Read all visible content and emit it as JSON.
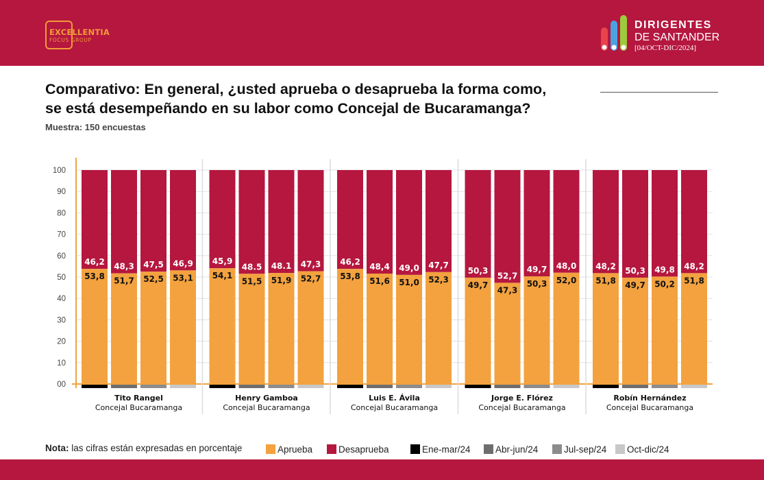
{
  "header": {
    "left_logo": {
      "name": "EXCELLENTIA",
      "sub": "FOCUS GROUP"
    },
    "right_logo": {
      "line1": "DIRIGENTES",
      "line2": "DE SANTANDER",
      "line3": "[04/OCT-DIC/2024]"
    },
    "colors": {
      "bar": "#b5173f",
      "logo_orange": "#f29a38",
      "logo_dots": [
        "#e8434a",
        "#4aa3df",
        "#9ccc3c"
      ]
    }
  },
  "title": {
    "line1": "Comparativo: En general, ¿usted aprueba o desaprueba la forma como,",
    "line2": "se está desempeñando en su labor como Concejal de Bucaramanga?"
  },
  "sample": "Muestra: 150 encuestas",
  "note": {
    "label": "Nota:",
    "text": "las cifras están expresadas en porcentaje"
  },
  "legend": [
    {
      "label": "Aprueba",
      "color": "#f3a23f"
    },
    {
      "label": "Desaprueba",
      "color": "#b5173f"
    },
    {
      "label": "Ene-mar/24",
      "color": "#000000"
    },
    {
      "label": "Abr-jun/24",
      "color": "#6e6e6e"
    },
    {
      "label": "Jul-sep/24",
      "color": "#8c8c8c"
    },
    {
      "label": "Oct-dic/24",
      "color": "#c8c8c8"
    }
  ],
  "chart_data": {
    "type": "bar",
    "stacked": true,
    "ylim": [
      0,
      100
    ],
    "yticks": [
      "00",
      "10",
      "20",
      "30",
      "40",
      "50",
      "60",
      "70",
      "80",
      "90",
      "100"
    ],
    "grid": true,
    "periods": [
      "Ene-mar/24",
      "Abr-jun/24",
      "Jul-sep/24",
      "Oct-dic/24"
    ],
    "period_colors": [
      "#000000",
      "#6e6e6e",
      "#8c8c8c",
      "#c8c8c8"
    ],
    "series_colors": {
      "Aprueba": "#f3a23f",
      "Desaprueba": "#b5173f"
    },
    "groups": [
      {
        "name": "Tito Rangel",
        "role": "Concejal Bucaramanga",
        "aprueba": [
          "53,8",
          "51,7",
          "52,5",
          "53,1"
        ],
        "desaprueba": [
          "46,2",
          "48,3",
          "47,5",
          "46,9"
        ]
      },
      {
        "name": "Henry Gamboa",
        "role": "Concejal Bucaramanga",
        "aprueba": [
          "54,1",
          "51,5",
          "51,9",
          "52,7"
        ],
        "desaprueba": [
          "45,9",
          "48.5",
          "48.1",
          "47,3"
        ]
      },
      {
        "name": "Luis E. Ávila",
        "role": "Concejal Bucaramanga",
        "aprueba": [
          "53,8",
          "51,6",
          "51,0",
          "52,3"
        ],
        "desaprueba": [
          "46,2",
          "48,4",
          "49,0",
          "47,7"
        ]
      },
      {
        "name": "Jorge E. Flórez",
        "role": "Concejal Bucaramanga",
        "aprueba": [
          "49,7",
          "47,3",
          "50,3",
          "52,0"
        ],
        "desaprueba": [
          "50,3",
          "52,7",
          "49,7",
          "48,0"
        ]
      },
      {
        "name": "Robín Hernández",
        "role": "Concejal Bucaramanga",
        "aprueba": [
          "51,8",
          "49,7",
          "50,2",
          "51,8"
        ],
        "desaprueba": [
          "48,2",
          "50,3",
          "49,8",
          "48,2"
        ]
      }
    ]
  }
}
